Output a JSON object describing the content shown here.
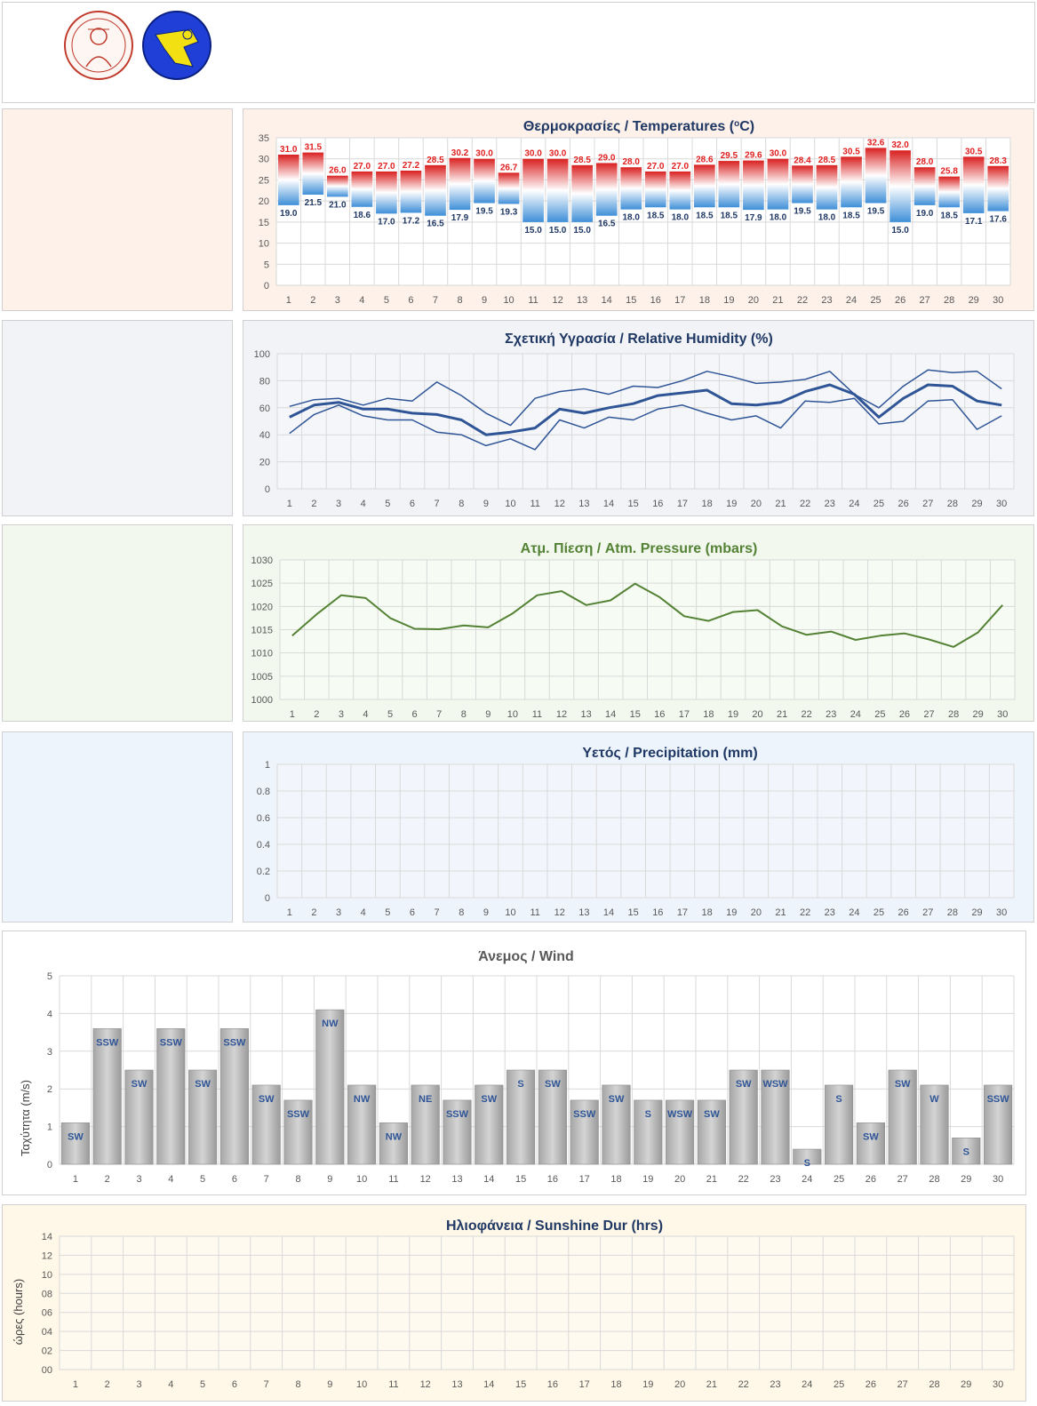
{
  "colors": {
    "temp_high": "#e02020",
    "temp_low": "#4a90d9",
    "humidity": "#2f5597",
    "pressure": "#548235",
    "wind_bar": "#b0b0b0",
    "wind_label": "#2f5597",
    "title_dark": "#1f3864",
    "bg_temp": "#fdf1ea",
    "bg_hum": "#f1f3f6",
    "bg_pres": "#f2f8ee",
    "bg_prec": "#eef4fb",
    "bg_sun": "#fff8e8"
  },
  "logos": [
    "university-seal-logo",
    "meteorology-lab-logo"
  ],
  "charts": {
    "temperature": {
      "title": "Θερμοκρασίες / Temperatures (",
      "title_sup": "o",
      "title_tail": "C)"
    },
    "humidity": {
      "title": "Σχετική Υγρασία / Relative Humidity (%)"
    },
    "pressure": {
      "title": "Ατμ. Πίεση / Atm. Pressure (mbars)"
    },
    "precipitation": {
      "title": "Υετός / Precipitation (mm)"
    },
    "wind": {
      "title": "Άνεμος / Wind",
      "ylabel": "Ταχύτητα  (m/s)"
    },
    "sunshine": {
      "title": "Ηλιοφάνεια / Sunshine Dur (hrs)",
      "ylabel": "ώρες (hours)"
    }
  },
  "chart_data": [
    {
      "id": "temperature",
      "type": "bar",
      "title": "Θερμοκρασίες / Temperatures (oC)",
      "categories": [
        "1",
        "2",
        "3",
        "4",
        "5",
        "6",
        "7",
        "8",
        "9",
        "10",
        "11",
        "12",
        "13",
        "14",
        "15",
        "16",
        "17",
        "18",
        "19",
        "20",
        "21",
        "22",
        "23",
        "24",
        "25",
        "26",
        "27",
        "28",
        "29",
        "30"
      ],
      "series": [
        {
          "values": [
            31.0,
            31.5,
            26.0,
            27.0,
            27.0,
            27.2,
            28.5,
            30.2,
            30.0,
            26.7,
            30.0,
            30.0,
            28.5,
            29.0,
            28.0,
            27.0,
            27.0,
            28.6,
            29.5,
            29.6,
            30.0,
            28.4,
            28.5,
            30.5,
            32.6,
            32.0,
            28.0,
            25.8,
            30.5,
            28.3
          ]
        },
        {
          "values": [
            19.0,
            21.5,
            21.0,
            18.6,
            17.0,
            17.2,
            16.5,
            17.9,
            19.5,
            19.3,
            15.0,
            15.0,
            15.0,
            16.5,
            18.0,
            18.5,
            18.0,
            18.5,
            18.5,
            17.9,
            18.0,
            19.5,
            18.0,
            18.5,
            19.5,
            15.0,
            19.0,
            18.5,
            17.1,
            17.6
          ]
        }
      ],
      "high_labels": [
        "31.0",
        "31.5",
        "26.0",
        "27.0",
        "27.0",
        "27.2",
        "28.5",
        "30.2",
        "30.0",
        "26.7",
        "30.0",
        "30.0",
        "28.5",
        "29.0",
        "28.0",
        "27.0",
        "27.0",
        "28.6",
        "29.5",
        "29.6",
        "30.0",
        "28.4",
        "28.5",
        "30.5",
        "32.6",
        "32.0",
        "28.0",
        "25.8",
        "30.5",
        "28.3"
      ],
      "low_labels": [
        "19.0",
        "21.5",
        "21.0",
        "18.6",
        "17.0",
        "17.2",
        "16.5",
        "17.9",
        "19.5",
        "19.3",
        "15.0",
        "15.0",
        "15.0",
        "16.5",
        "18.0",
        "18.5",
        "18.0",
        "18.5",
        "18.5",
        "17.9",
        "18.0",
        "19.5",
        "18.0",
        "18.5",
        "19.5",
        "15.0",
        "19.0",
        "18.5",
        "17.1",
        "17.6"
      ],
      "ylim": [
        0,
        35
      ],
      "yticks": [
        "0",
        "5",
        "10",
        "15",
        "20",
        "25",
        "30",
        "35"
      ],
      "grid": true
    },
    {
      "id": "humidity",
      "type": "line",
      "title": "Σχετική Υγρασία / Relative Humidity (%)",
      "categories": [
        "1",
        "2",
        "3",
        "4",
        "5",
        "6",
        "7",
        "8",
        "9",
        "10",
        "11",
        "12",
        "13",
        "14",
        "15",
        "16",
        "17",
        "18",
        "19",
        "20",
        "21",
        "22",
        "23",
        "24",
        "25",
        "26",
        "27",
        "28",
        "29",
        "30"
      ],
      "series": [
        {
          "values": [
            61,
            66,
            67,
            62,
            67,
            65,
            79,
            69,
            56,
            47,
            67,
            72,
            74,
            70,
            76,
            75,
            80,
            87,
            83,
            78,
            79,
            81,
            87,
            70,
            60,
            76,
            88,
            86,
            87,
            74
          ]
        },
        {
          "values": [
            53,
            62,
            64,
            59,
            59,
            56,
            55,
            51,
            40,
            42,
            45,
            59,
            56,
            60,
            63,
            69,
            71,
            73,
            63,
            62,
            64,
            72,
            77,
            70,
            53,
            67,
            77,
            76,
            65,
            62
          ]
        },
        {
          "values": [
            41,
            55,
            62,
            54,
            51,
            51,
            42,
            40,
            32,
            37,
            29,
            51,
            45,
            53,
            51,
            59,
            62,
            56,
            51,
            54,
            45,
            65,
            64,
            67,
            48,
            50,
            65,
            66,
            44,
            54
          ]
        }
      ],
      "ylim": [
        0,
        100
      ],
      "yticks": [
        "0",
        "20",
        "40",
        "60",
        "80",
        "100"
      ],
      "grid": true
    },
    {
      "id": "pressure",
      "type": "line",
      "title": "Ατμ. Πίεση / Atm. Pressure (mbars)",
      "categories": [
        "1",
        "2",
        "3",
        "4",
        "5",
        "6",
        "7",
        "8",
        "9",
        "10",
        "11",
        "12",
        "13",
        "14",
        "15",
        "16",
        "17",
        "18",
        "19",
        "20",
        "21",
        "22",
        "23",
        "24",
        "25",
        "26",
        "27",
        "28",
        "29",
        "30"
      ],
      "series": [
        {
          "values": [
            1013.7,
            1018.3,
            1022.4,
            1021.8,
            1017.5,
            1015.2,
            1015.1,
            1015.9,
            1015.5,
            1018.5,
            1022.4,
            1023.3,
            1020.3,
            1021.3,
            1024.9,
            1022.0,
            1017.9,
            1016.9,
            1018.8,
            1019.2,
            1015.7,
            1013.9,
            1014.6,
            1012.8,
            1013.7,
            1014.2,
            1012.9,
            1011.3,
            1014.4,
            1020.3
          ]
        }
      ],
      "ylim": [
        1000,
        1030
      ],
      "yticks": [
        "1000",
        "1005",
        "1010",
        "1015",
        "1020",
        "1025",
        "1030"
      ],
      "grid": true
    },
    {
      "id": "precipitation",
      "type": "bar",
      "title": "Υετός / Precipitation (mm)",
      "categories": [
        "1",
        "2",
        "3",
        "4",
        "5",
        "6",
        "7",
        "8",
        "9",
        "10",
        "11",
        "12",
        "13",
        "14",
        "15",
        "16",
        "17",
        "18",
        "19",
        "20",
        "21",
        "22",
        "23",
        "24",
        "25",
        "26",
        "27",
        "28",
        "29",
        "30"
      ],
      "series": [
        {
          "values": [
            0,
            0,
            0,
            0,
            0,
            0,
            0,
            0,
            0,
            0,
            0,
            0,
            0,
            0,
            0,
            0,
            0,
            0,
            0,
            0,
            0,
            0,
            0,
            0,
            0,
            0,
            0,
            0,
            0,
            0
          ]
        }
      ],
      "ylim": [
        0,
        1
      ],
      "yticks": [
        "0",
        "0.2",
        "0.4",
        "0.6",
        "0.8",
        "1"
      ],
      "grid": true
    },
    {
      "id": "wind",
      "type": "bar",
      "title": "Άνεμος / Wind",
      "ylabel": "Ταχύτητα  (m/s)",
      "categories": [
        "1",
        "2",
        "3",
        "4",
        "5",
        "6",
        "7",
        "8",
        "9",
        "10",
        "11",
        "12",
        "13",
        "14",
        "15",
        "16",
        "17",
        "18",
        "19",
        "20",
        "21",
        "22",
        "23",
        "24",
        "25",
        "26",
        "27",
        "28",
        "29",
        "30"
      ],
      "series": [
        {
          "values": [
            1.1,
            3.6,
            2.5,
            3.6,
            2.5,
            3.6,
            2.1,
            1.7,
            4.1,
            2.1,
            1.1,
            2.1,
            1.7,
            2.1,
            2.5,
            2.5,
            1.7,
            2.1,
            1.7,
            1.7,
            1.7,
            2.5,
            2.5,
            0.4,
            2.1,
            1.1,
            2.5,
            2.1,
            0.7,
            2.1
          ]
        }
      ],
      "directions": [
        "SW",
        "SSW",
        "SW",
        "SSW",
        "SW",
        "SSW",
        "SW",
        "SSW",
        "NW",
        "NW",
        "NW",
        "NE",
        "SSW",
        "SW",
        "S",
        "SW",
        "SSW",
        "SW",
        "S",
        "WSW",
        "SW",
        "SW",
        "WSW",
        "S",
        "S",
        "SW",
        "SW",
        "W",
        "S",
        "SSW"
      ],
      "ylim": [
        0,
        5
      ],
      "yticks": [
        "0",
        "1",
        "2",
        "3",
        "4",
        "5"
      ],
      "grid": true
    },
    {
      "id": "sunshine",
      "type": "bar",
      "title": "Ηλιοφάνεια / Sunshine Dur (hrs)",
      "ylabel": "ώρες (hours)",
      "categories": [
        "1",
        "2",
        "3",
        "4",
        "5",
        "6",
        "7",
        "8",
        "9",
        "10",
        "11",
        "12",
        "13",
        "14",
        "15",
        "16",
        "17",
        "18",
        "19",
        "20",
        "21",
        "22",
        "23",
        "24",
        "25",
        "26",
        "27",
        "28",
        "29",
        "30"
      ],
      "series": [
        {
          "values": [
            0,
            0,
            0,
            0,
            0,
            0,
            0,
            0,
            0,
            0,
            0,
            0,
            0,
            0,
            0,
            0,
            0,
            0,
            0,
            0,
            0,
            0,
            0,
            0,
            0,
            0,
            0,
            0,
            0,
            0
          ]
        }
      ],
      "ylim": [
        0,
        14
      ],
      "yticks": [
        "00",
        "02",
        "04",
        "06",
        "08",
        "10",
        "12",
        "14"
      ],
      "grid": true
    }
  ]
}
